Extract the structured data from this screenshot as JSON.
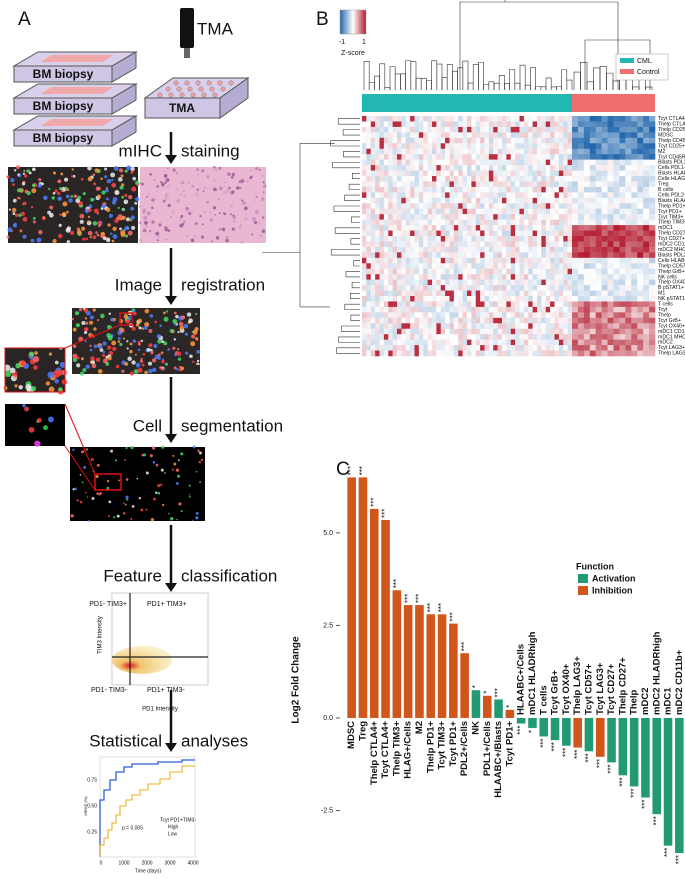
{
  "panel_a": {
    "label": "A",
    "tma_title": "TMA",
    "biopsies": [
      "BM biopsy",
      "BM biopsy",
      "BM biopsy"
    ],
    "tma_block": "TMA",
    "steps": [
      [
        "mIHC",
        "staining"
      ],
      [
        "Image",
        "registration"
      ],
      [
        "Cell",
        "segmentation"
      ],
      [
        "Feature",
        "classification"
      ],
      [
        "Statistical",
        "analyses"
      ]
    ],
    "quadrants": {
      "top_left": "PD1- TIM3+",
      "top_right": "PD1+ TIM3+",
      "bottom_left": "PD1- TIM3-",
      "bottom_right": "PD1+ TIM3-",
      "y_label": "TIM3 Intensity",
      "x_label": "PD1 Intensity"
    },
    "survival": {
      "legend_title": "Tcyt PD1+TIM3-",
      "groups": [
        "High",
        "Low"
      ],
      "p_value": "p = 0.005",
      "x_label": "Time (days)",
      "y_label": "MRHS (%)",
      "xticks": [
        "0",
        "1000",
        "2000",
        "3000",
        "4000"
      ],
      "yticks": [
        "0.25",
        "0.50",
        "0.75"
      ]
    }
  },
  "panel_b": {
    "label": "B",
    "colorbar": {
      "min": -1,
      "max": 1,
      "title": "Z-score"
    },
    "groups": [
      {
        "name": "CML",
        "color": "#22b8b2"
      },
      {
        "name": "Control",
        "color": "#f26d6d"
      }
    ],
    "rows": [
      "Tcyt CTLA4+",
      "Thelp CTLA4+",
      "Thelp CD25+",
      "MDSC",
      "Thelp CD45RO+",
      "Tcyt CD25+",
      "M2",
      "Tcyt CD45RO+",
      "Blasts PDL1+",
      "Cells PDL1+",
      "Blasts HLAG+",
      "Cells HLAG+",
      "Treg",
      "B cells",
      "Cells PDL2+",
      "Blasts HLAABC+",
      "Thelp PD1+",
      "Tcyt PD1+",
      "Tcyt TIM3+",
      "Thelp TIM3+",
      "mDC1",
      "Thelp CD27+",
      "Tcyt CD27+",
      "mDC2 CD11b+",
      "mDC2 MHCIIhigh",
      "Blasts PDL2+",
      "Cells HLABC+",
      "Thelp CD57+",
      "Thelp GrB+",
      "NK cells",
      "Thelp OX40+",
      "B pSTAT1+",
      "M1",
      "NK pSTAT1+",
      "T cells",
      "Tcyt",
      "Thelp",
      "Tcyt GrB+",
      "Tcyt OX40+",
      "mDC1 CD11b+",
      "mDC1 MHCIIhigh",
      "mDC2",
      "Tcyt LAG3+",
      "Thelp LAG3+"
    ]
  },
  "chart_data": {
    "type": "bar",
    "panel_label": "C",
    "y_label": "Log2 Fold Change",
    "categories": [
      "MDSC",
      "Treg",
      "Thelp CTLA4+",
      "Tcyt CTLA4+",
      "Thelp TIM3+",
      "HLAG+/Cells",
      "M2",
      "Thelp PD1+",
      "Tcyt TIM3+",
      "Tcyt PD1+",
      "PDL2+/Cells",
      "NK",
      "PDL1+/Cells",
      "HLAABC+/Blasts",
      "Tcyt PD1+",
      "HLAABC+/Cells",
      "mDC1 HLADRhigh",
      "T cells",
      "Tcyt GrB+",
      "Tcyt OX40+",
      "Thelp LAG3+",
      "Tcyt CD57+",
      "Tcyt LAG3+",
      "Tcyt CD27+",
      "Thelp CD27+",
      "Thelp",
      "mDC2",
      "mDC2 HLADRhigh",
      "mDC1",
      "mDC2 CD11b+"
    ],
    "series": [
      {
        "name": "Activation",
        "color": "#229a73",
        "values": [
          null,
          null,
          null,
          null,
          null,
          null,
          null,
          null,
          null,
          null,
          null,
          0.75,
          null,
          0.5,
          null,
          -0.15,
          -0.27,
          -0.5,
          -0.6,
          -0.75,
          null,
          -0.9,
          null,
          -1.2,
          -1.55,
          -1.85,
          -2.15,
          -2.6,
          -3.45,
          -3.65
        ]
      },
      {
        "name": "Inhibition",
        "color": "#d0561b",
        "values": [
          6.5,
          6.5,
          5.65,
          5.35,
          3.45,
          3.05,
          3.05,
          2.8,
          2.8,
          2.55,
          1.75,
          null,
          0.6,
          null,
          0.22,
          null,
          null,
          null,
          null,
          null,
          -0.8,
          null,
          -1.05,
          null,
          null,
          null,
          null,
          null,
          null,
          null
        ]
      }
    ],
    "significance": [
      "***",
      "***",
      "***",
      "***",
      "***",
      "***",
      "***",
      "***",
      "***",
      "***",
      "***",
      "*",
      "*",
      "***",
      "*",
      "***",
      "*",
      "***",
      "***",
      "***",
      "***",
      "***",
      "***",
      "***",
      "***",
      "***",
      "***",
      "***",
      "***",
      "***"
    ],
    "legend_title": "Function",
    "ylim": [
      -3.9,
      6.7
    ],
    "yticks": [
      -2.5,
      {
        "value": 0,
        "label": "0.0"
      },
      2.5,
      {
        "value": 5,
        "label": "5.0"
      }
    ]
  }
}
